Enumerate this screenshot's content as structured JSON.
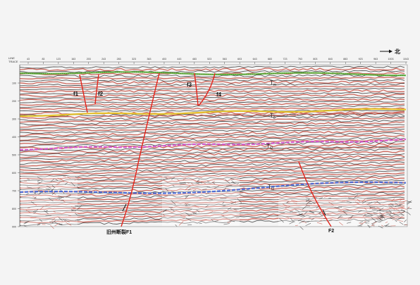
{
  "direction": {
    "label": "北"
  },
  "axis": {
    "line_label": "LINE",
    "trace_label": "TRACE",
    "trace_ticks": [
      "43",
      "83",
      "123",
      "163",
      "203",
      "243",
      "283",
      "323",
      "363",
      "403",
      "443",
      "483",
      "523",
      "563",
      "603",
      "643",
      "683",
      "723",
      "763",
      "803",
      "843",
      "883",
      "923",
      "963",
      "1003",
      "1043"
    ],
    "time_ticks": [
      "100",
      "200",
      "300",
      "400",
      "500",
      "600",
      "700",
      "800",
      "900"
    ]
  },
  "horizons": [
    {
      "label": "T",
      "sub": "m",
      "color": "#5cb338"
    },
    {
      "label": "T",
      "sub": "0",
      "color": "#e7c21d"
    },
    {
      "label": "T",
      "sub": "t2",
      "color": "#d64fcf"
    },
    {
      "label": "T",
      "sub": "t3",
      "color": "#3f63d6"
    }
  ],
  "faults": [
    {
      "label": "f1"
    },
    {
      "label": "f2"
    },
    {
      "label": "f3"
    },
    {
      "label": "f4"
    },
    {
      "label": "旧州断裂F1"
    },
    {
      "label": "F2"
    }
  ],
  "colors": {
    "fault": "#e2231a",
    "trace_red": "#c0392b",
    "trace_dark": "#222222"
  }
}
